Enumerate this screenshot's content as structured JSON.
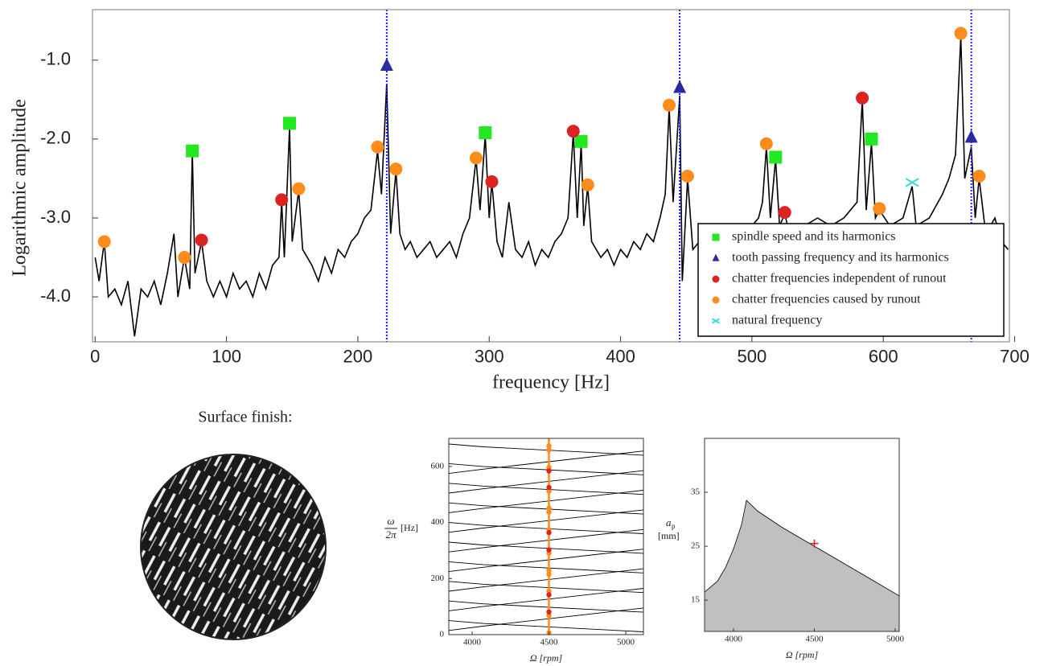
{
  "chart_data": [
    {
      "type": "line",
      "xlabel": "frequency [Hz]",
      "ylabel": "Logarithmic amplitude",
      "xlim": [
        -2,
        696
      ],
      "ylim": [
        -4.57,
        -0.36
      ],
      "xticks": [
        0,
        100,
        200,
        300,
        400,
        500,
        600,
        700
      ],
      "yticks": [
        {
          "value": -1,
          "label": "-1.0"
        },
        {
          "value": -2,
          "label": "-2.0"
        },
        {
          "value": -3,
          "label": "-3.0"
        },
        {
          "value": -4,
          "label": "-4.0"
        }
      ],
      "color": "#000000",
      "x": [
        0,
        3,
        7,
        10,
        15,
        20,
        25,
        30,
        35,
        40,
        45,
        50,
        55,
        60,
        63,
        68,
        72,
        74,
        76,
        81,
        85,
        90,
        95,
        100,
        105,
        110,
        115,
        120,
        125,
        130,
        135,
        140,
        142,
        144,
        148,
        150,
        155,
        158,
        165,
        170,
        175,
        180,
        185,
        190,
        195,
        200,
        205,
        210,
        215,
        218,
        222,
        225,
        229,
        232,
        236,
        240,
        245,
        250,
        255,
        260,
        265,
        270,
        275,
        280,
        285,
        290,
        293,
        297,
        300,
        302,
        306,
        310,
        315,
        320,
        325,
        330,
        335,
        340,
        345,
        350,
        355,
        360,
        364,
        367,
        370,
        372,
        375,
        378,
        385,
        390,
        395,
        400,
        405,
        410,
        415,
        420,
        425,
        430,
        434,
        437,
        440,
        445,
        447,
        451,
        455,
        460,
        465,
        470,
        475,
        480,
        485,
        490,
        495,
        500,
        505,
        508,
        511,
        514,
        518,
        521,
        525,
        530,
        540,
        550,
        560,
        570,
        575,
        580,
        584,
        587,
        591,
        594,
        597,
        605,
        615,
        622,
        625,
        635,
        645,
        650,
        655,
        659,
        662,
        667,
        670,
        673,
        678,
        685,
        690,
        695
      ],
      "values": [
        -3.5,
        -3.8,
        -3.3,
        -4.0,
        -3.9,
        -4.1,
        -3.8,
        -4.5,
        -3.9,
        -4.0,
        -3.8,
        -4.1,
        -3.7,
        -3.2,
        -4.0,
        -3.5,
        -3.9,
        -2.15,
        -3.7,
        -3.3,
        -3.8,
        -4.0,
        -3.8,
        -4.0,
        -3.7,
        -3.9,
        -3.8,
        -4.0,
        -3.7,
        -3.9,
        -3.6,
        -3.5,
        -2.8,
        -3.5,
        -1.85,
        -3.3,
        -2.65,
        -3.4,
        -3.6,
        -3.8,
        -3.5,
        -3.7,
        -3.4,
        -3.5,
        -3.3,
        -3.2,
        -3.0,
        -2.9,
        -2.15,
        -2.7,
        -1.3,
        -3.2,
        -2.4,
        -3.2,
        -3.4,
        -3.3,
        -3.5,
        -3.4,
        -3.3,
        -3.5,
        -3.4,
        -3.3,
        -3.5,
        -3.2,
        -3.0,
        -2.25,
        -2.9,
        -1.95,
        -3.0,
        -2.55,
        -3.3,
        -3.5,
        -2.8,
        -3.4,
        -3.5,
        -3.3,
        -3.6,
        -3.4,
        -3.5,
        -3.3,
        -3.2,
        -3.0,
        -1.92,
        -3.0,
        -2.05,
        -3.1,
        -2.6,
        -3.3,
        -3.5,
        -3.4,
        -3.6,
        -3.4,
        -3.5,
        -3.3,
        -3.4,
        -3.2,
        -3.3,
        -3.0,
        -2.7,
        -1.6,
        -2.8,
        -1.45,
        -3.8,
        -2.5,
        -3.4,
        -3.3,
        -3.5,
        -3.3,
        -3.4,
        -3.2,
        -3.4,
        -3.3,
        -3.2,
        -3.1,
        -3.0,
        -2.8,
        -2.1,
        -3.0,
        -2.25,
        -3.1,
        -2.95,
        -3.3,
        -3.1,
        -3.0,
        -3.1,
        -3.0,
        -2.9,
        -2.8,
        -1.5,
        -2.9,
        -2.05,
        -3.0,
        -2.9,
        -3.1,
        -3.0,
        -2.6,
        -3.1,
        -3.0,
        -2.7,
        -2.5,
        -2.2,
        -0.7,
        -2.5,
        -2.1,
        -3.0,
        -2.5,
        -3.2,
        -3.0,
        -3.3,
        -3.4
      ],
      "vlines": [
        222,
        445,
        667
      ],
      "vline_color": "#1a1aff",
      "legend": "lower right",
      "markers": [
        {
          "name": "spindle speed and its harmonics",
          "color": "#22e822",
          "shape": "square",
          "x": [
            74,
            148,
            297,
            370,
            518,
            591
          ],
          "values": [
            -2.15,
            -1.8,
            -1.92,
            -2.03,
            -2.23,
            -2.0
          ]
        },
        {
          "name": "tooth passing frequency and its harmonics",
          "color": "#2b2b9f",
          "shape": "triangle",
          "x": [
            222,
            445,
            667
          ],
          "values": [
            -1.07,
            -1.35,
            -1.98
          ]
        },
        {
          "name": "chatter frequencies independent of runout",
          "color": "#dd2222",
          "shape": "circle",
          "x": [
            81,
            142,
            302,
            364,
            525,
            584
          ],
          "values": [
            -3.28,
            -2.77,
            -2.54,
            -1.9,
            -2.93,
            -1.48
          ]
        },
        {
          "name": "chatter frequencies caused by runout",
          "color": "#ff8c1a",
          "shape": "circle",
          "x": [
            7,
            68,
            155,
            215,
            229,
            290,
            375,
            437,
            451,
            511,
            597,
            659,
            673
          ],
          "values": [
            -3.3,
            -3.5,
            -2.63,
            -2.1,
            -2.38,
            -2.24,
            -2.58,
            -1.57,
            -2.47,
            -2.06,
            -2.88,
            -0.66,
            -2.47
          ]
        },
        {
          "name": "natural frequency",
          "color": "#33dddd",
          "shape": "x",
          "x": [
            622
          ],
          "values": [
            -2.55
          ]
        }
      ]
    },
    {
      "type": "lines",
      "xlabel": "Ω [rpm]",
      "ylabel": {
        "numerator": "ω",
        "denominator": "2π",
        "unit": "[Hz]"
      },
      "xlim": [
        3848,
        5115
      ],
      "ylim": [
        0,
        700
      ],
      "xticks": [
        4000,
        4500,
        5000
      ],
      "yticks": [
        0,
        200,
        400,
        600
      ],
      "color": "#000000",
      "vlines": [
        4500
      ],
      "vline_color": "#ff8c1a",
      "lines": [
        {
          "x": [
            3848,
            4070,
            5115
          ],
          "values": [
            15,
            30,
            95
          ]
        },
        {
          "x": [
            3848,
            4070,
            5115
          ],
          "values": [
            85,
            100,
            165
          ]
        },
        {
          "x": [
            3848,
            4070,
            5115
          ],
          "values": [
            155,
            170,
            235
          ]
        },
        {
          "x": [
            3848,
            4070,
            5115
          ],
          "values": [
            225,
            240,
            305
          ]
        },
        {
          "x": [
            3848,
            4070,
            5115
          ],
          "values": [
            295,
            310,
            375
          ]
        },
        {
          "x": [
            3848,
            4070,
            5115
          ],
          "values": [
            365,
            380,
            445
          ]
        },
        {
          "x": [
            3848,
            4070,
            5115
          ],
          "values": [
            435,
            450,
            515
          ]
        },
        {
          "x": [
            3848,
            4070,
            5115
          ],
          "values": [
            505,
            520,
            585
          ]
        },
        {
          "x": [
            3848,
            4070,
            5115
          ],
          "values": [
            575,
            590,
            655
          ]
        },
        {
          "x": [
            3848,
            4070,
            5115
          ],
          "values": [
            50,
            40,
            10
          ]
        },
        {
          "x": [
            3848,
            4070,
            5115
          ],
          "values": [
            120,
            110,
            80
          ]
        },
        {
          "x": [
            3848,
            4070,
            5115
          ],
          "values": [
            190,
            180,
            150
          ]
        },
        {
          "x": [
            3848,
            4070,
            5115
          ],
          "values": [
            260,
            250,
            220
          ]
        },
        {
          "x": [
            3848,
            4070,
            5115
          ],
          "values": [
            330,
            320,
            290
          ]
        },
        {
          "x": [
            3848,
            4070,
            5115
          ],
          "values": [
            400,
            390,
            360
          ]
        },
        {
          "x": [
            3848,
            4070,
            5115
          ],
          "values": [
            470,
            460,
            430
          ]
        },
        {
          "x": [
            3848,
            4070,
            5115
          ],
          "values": [
            540,
            530,
            500
          ]
        },
        {
          "x": [
            3848,
            4070,
            5115
          ],
          "values": [
            610,
            600,
            570
          ]
        },
        {
          "x": [
            3848,
            4070,
            5115
          ],
          "values": [
            680,
            670,
            640
          ]
        }
      ],
      "markers": [
        {
          "color": "#ff8c1a",
          "shape": "circle",
          "x": [
            4500,
            4500,
            4500,
            4500,
            4500,
            4500,
            4500,
            4500,
            4500,
            4500,
            4500,
            4500,
            4500
          ],
          "values": [
            7,
            68,
            155,
            215,
            229,
            290,
            375,
            437,
            451,
            511,
            597,
            659,
            673
          ]
        },
        {
          "color": "#dd2222",
          "shape": "circle",
          "x": [
            4500,
            4500,
            4500,
            4500,
            4500,
            4500
          ],
          "values": [
            81,
            142,
            302,
            364,
            525,
            584
          ]
        }
      ]
    },
    {
      "type": "area",
      "xlabel": "Ω [rpm]",
      "ylabel": {
        "symbol": "a",
        "subscript": "p",
        "unit": "[mm]"
      },
      "xlim": [
        3821,
        5025
      ],
      "ylim": [
        9.2,
        45
      ],
      "xticks": [
        4000,
        4500,
        5000
      ],
      "yticks": [
        15,
        25,
        35
      ],
      "color": "#000000",
      "fill": "#c0c0c0",
      "x": [
        3821,
        3900,
        3950,
        4000,
        4050,
        4080,
        4150,
        4300,
        4500,
        4700,
        4900,
        5025
      ],
      "values": [
        16.5,
        18.5,
        21,
        24.5,
        29,
        33.5,
        31.5,
        28.5,
        25,
        21.5,
        18,
        15.8
      ],
      "markers": [
        {
          "color": "#dd2222",
          "shape": "plus",
          "x": [
            4500
          ],
          "values": [
            25.5
          ]
        }
      ]
    }
  ],
  "surface_finish": {
    "title": "Surface finish:"
  }
}
